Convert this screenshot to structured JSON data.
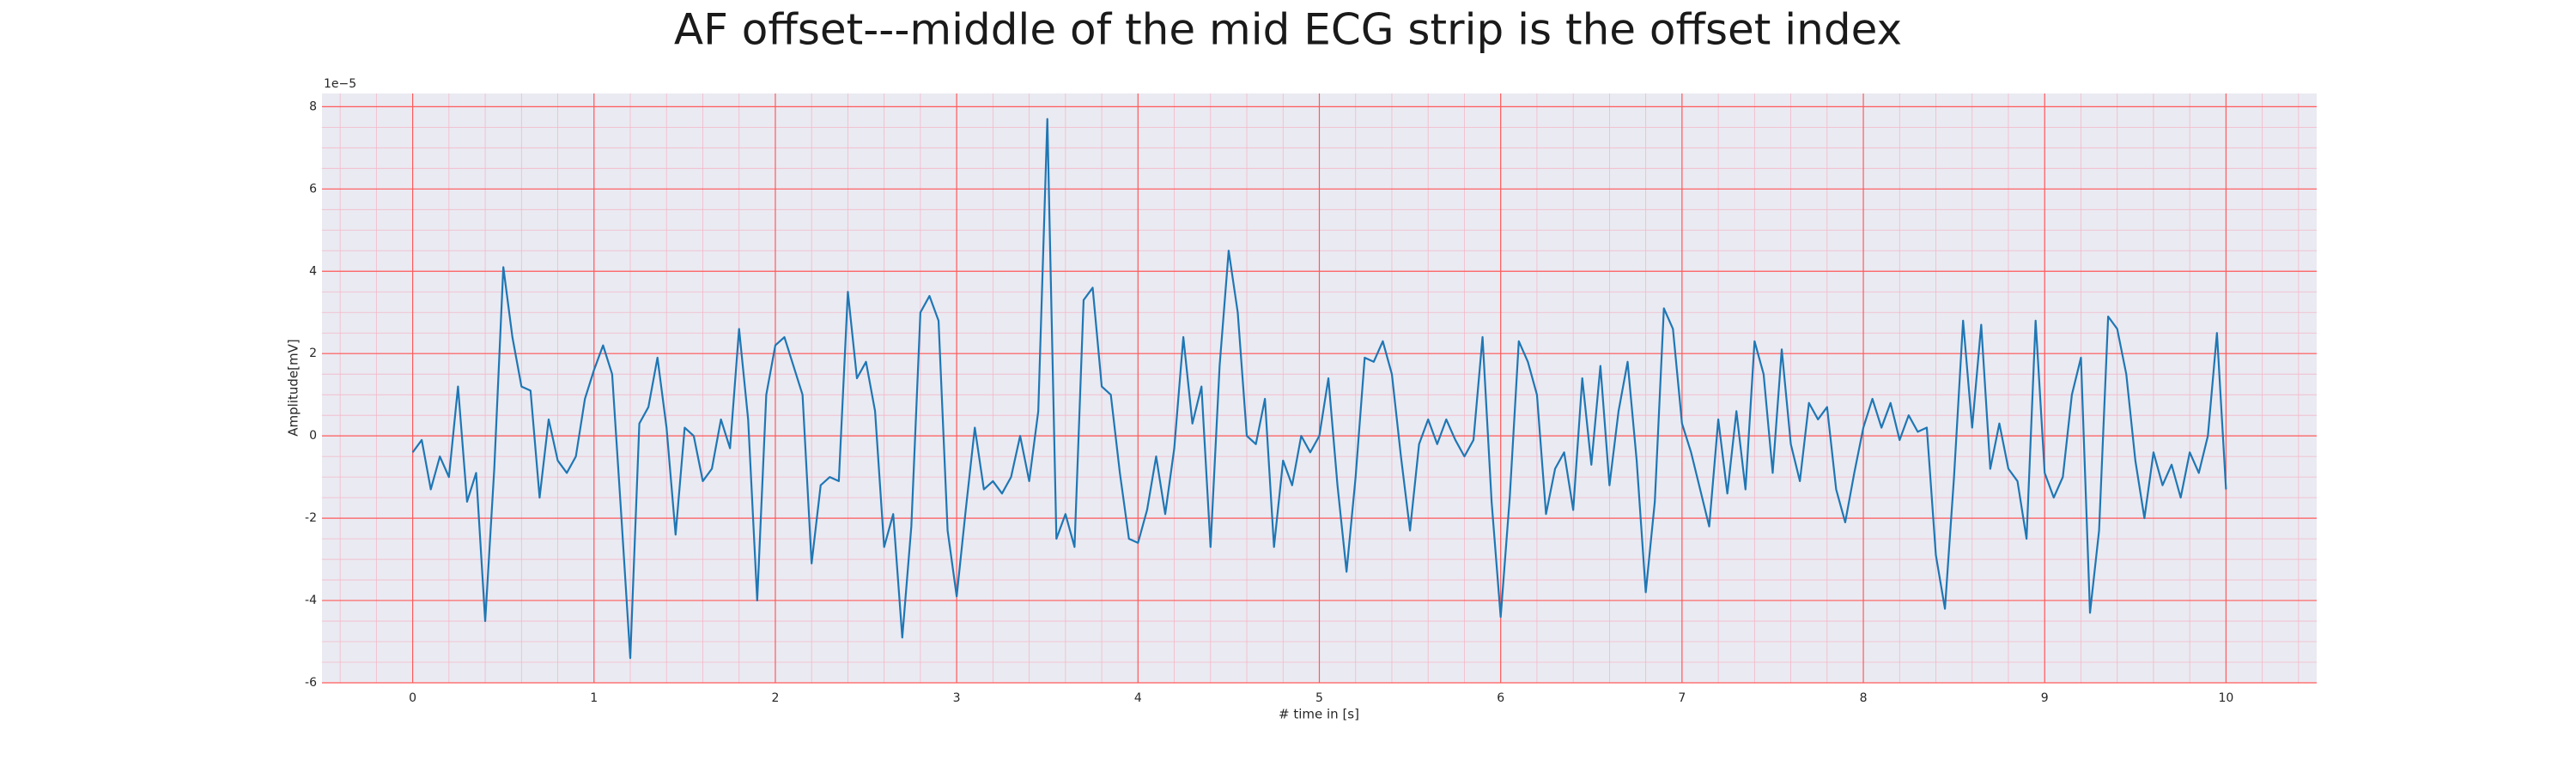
{
  "chart_data": {
    "type": "line",
    "title": "AF offset---middle of the mid ECG strip is the offset index",
    "x_label": "# time in [s]",
    "y_label": "Amplitude[mV]",
    "y_offset_label": "1e−5",
    "xlim": [
      -0.5,
      10.5
    ],
    "ylim": [
      -6,
      8.32
    ],
    "xticks": [
      0,
      1,
      2,
      3,
      4,
      5,
      6,
      7,
      8,
      9,
      10
    ],
    "yticks": [
      -6,
      -4,
      -2,
      0,
      2,
      4,
      6,
      8
    ],
    "grid": true,
    "minor_grid": true,
    "grid_color": "#ff5a5a",
    "minor_grid_color": "#f4b8c8",
    "background": "#eaeaf2",
    "x": [
      0,
      0.05,
      0.1,
      0.15,
      0.2,
      0.25,
      0.3,
      0.35,
      0.4,
      0.45,
      0.5,
      0.55,
      0.6,
      0.65,
      0.7,
      0.75,
      0.8,
      0.85,
      0.9,
      0.95,
      1,
      1.05,
      1.1,
      1.15,
      1.2,
      1.25,
      1.3,
      1.35,
      1.4,
      1.45,
      1.5,
      1.55,
      1.6,
      1.65,
      1.7,
      1.75,
      1.8,
      1.85,
      1.9,
      1.95,
      2,
      2.05,
      2.1,
      2.15,
      2.2,
      2.25,
      2.3,
      2.35,
      2.4,
      2.45,
      2.5,
      2.55,
      2.6,
      2.65,
      2.7,
      2.75,
      2.8,
      2.85,
      2.9,
      2.95,
      3,
      3.05,
      3.1,
      3.15,
      3.2,
      3.25,
      3.3,
      3.35,
      3.4,
      3.45,
      3.5,
      3.55,
      3.6,
      3.65,
      3.7,
      3.75,
      3.8,
      3.85,
      3.9,
      3.95,
      4,
      4.05,
      4.1,
      4.15,
      4.2,
      4.25,
      4.3,
      4.35,
      4.4,
      4.45,
      4.5,
      4.55,
      4.6,
      4.65,
      4.7,
      4.75,
      4.8,
      4.85,
      4.9,
      4.95,
      5,
      5.05,
      5.1,
      5.15,
      5.2,
      5.25,
      5.3,
      5.35,
      5.4,
      5.45,
      5.5,
      5.55,
      5.6,
      5.65,
      5.7,
      5.75,
      5.8,
      5.85,
      5.9,
      5.95,
      6,
      6.05,
      6.1,
      6.15,
      6.2,
      6.25,
      6.3,
      6.35,
      6.4,
      6.45,
      6.5,
      6.55,
      6.6,
      6.65,
      6.7,
      6.75,
      6.8,
      6.85,
      6.9,
      6.95,
      7,
      7.05,
      7.1,
      7.15,
      7.2,
      7.25,
      7.3,
      7.35,
      7.4,
      7.45,
      7.5,
      7.55,
      7.6,
      7.65,
      7.7,
      7.75,
      7.8,
      7.85,
      7.9,
      7.95,
      8,
      8.05,
      8.1,
      8.15,
      8.2,
      8.25,
      8.3,
      8.35,
      8.4,
      8.45,
      8.5,
      8.55,
      8.6,
      8.65,
      8.7,
      8.75,
      8.8,
      8.85,
      8.9,
      8.95,
      9,
      9.05,
      9.1,
      9.15,
      9.2,
      9.25,
      9.3,
      9.35,
      9.4,
      9.45,
      9.5,
      9.55,
      9.6,
      9.65,
      9.7,
      9.75,
      9.8,
      9.85,
      9.9,
      9.95,
      10
    ],
    "series": [
      {
        "color": "#1f77b4",
        "values": [
          -0.4,
          -0.1,
          -1.3,
          -0.5,
          -1.0,
          1.2,
          -1.6,
          -0.9,
          -4.5,
          -0.8,
          4.1,
          2.4,
          1.2,
          1.1,
          -1.5,
          0.4,
          -0.6,
          -0.9,
          -0.5,
          0.9,
          1.6,
          2.2,
          1.5,
          -1.9,
          -5.4,
          0.3,
          0.7,
          1.9,
          0.2,
          -2.4,
          0.2,
          0.0,
          -1.1,
          -0.8,
          0.4,
          -0.3,
          2.6,
          0.4,
          -4.0,
          1.0,
          2.2,
          2.4,
          1.7,
          1.0,
          -3.1,
          -1.2,
          -1.0,
          -1.1,
          3.5,
          1.4,
          1.8,
          0.6,
          -2.7,
          -1.9,
          -4.9,
          -2.2,
          3.0,
          3.4,
          2.8,
          -2.3,
          -3.9,
          -1.8,
          0.2,
          -1.3,
          -1.1,
          -1.4,
          -1.0,
          0.0,
          -1.1,
          0.6,
          7.7,
          -2.5,
          -1.9,
          -2.7,
          3.3,
          3.6,
          1.2,
          1.0,
          -0.9,
          -2.5,
          -2.6,
          -1.8,
          -0.5,
          -1.9,
          -0.3,
          2.4,
          0.3,
          1.2,
          -2.7,
          1.7,
          4.5,
          3.0,
          0.0,
          -0.2,
          0.9,
          -2.7,
          -0.6,
          -1.2,
          0.0,
          -0.4,
          0.0,
          1.4,
          -1.2,
          -3.3,
          -1.0,
          1.9,
          1.8,
          2.3,
          1.5,
          -0.5,
          -2.3,
          -0.2,
          0.4,
          -0.2,
          0.4,
          -0.1,
          -0.5,
          -0.1,
          2.4,
          -1.6,
          -4.4,
          -1.5,
          2.3,
          1.8,
          1.0,
          -1.9,
          -0.8,
          -0.4,
          -1.8,
          1.4,
          -0.7,
          1.7,
          -1.2,
          0.6,
          1.8,
          -0.6,
          -3.8,
          -1.6,
          3.1,
          2.6,
          0.3,
          -0.4,
          -1.3,
          -2.2,
          0.4,
          -1.4,
          0.6,
          -1.3,
          2.3,
          1.5,
          -0.9,
          2.1,
          -0.2,
          -1.1,
          0.8,
          0.4,
          0.7,
          -1.3,
          -2.1,
          -0.9,
          0.2,
          0.9,
          0.2,
          0.8,
          -0.1,
          0.5,
          0.1,
          0.2,
          -2.9,
          -4.2,
          -1.0,
          2.8,
          0.2,
          2.7,
          -0.8,
          0.3,
          -0.8,
          -1.1,
          -2.5,
          2.8,
          -0.9,
          -1.5,
          -1.0,
          1.0,
          1.9,
          -4.3,
          -2.3,
          2.9,
          2.6,
          1.5,
          -0.6,
          -2.0,
          -0.4,
          -1.2,
          -0.7,
          -1.5,
          -0.4,
          -0.9,
          0.0,
          2.5,
          -1.3
        ]
      }
    ]
  }
}
